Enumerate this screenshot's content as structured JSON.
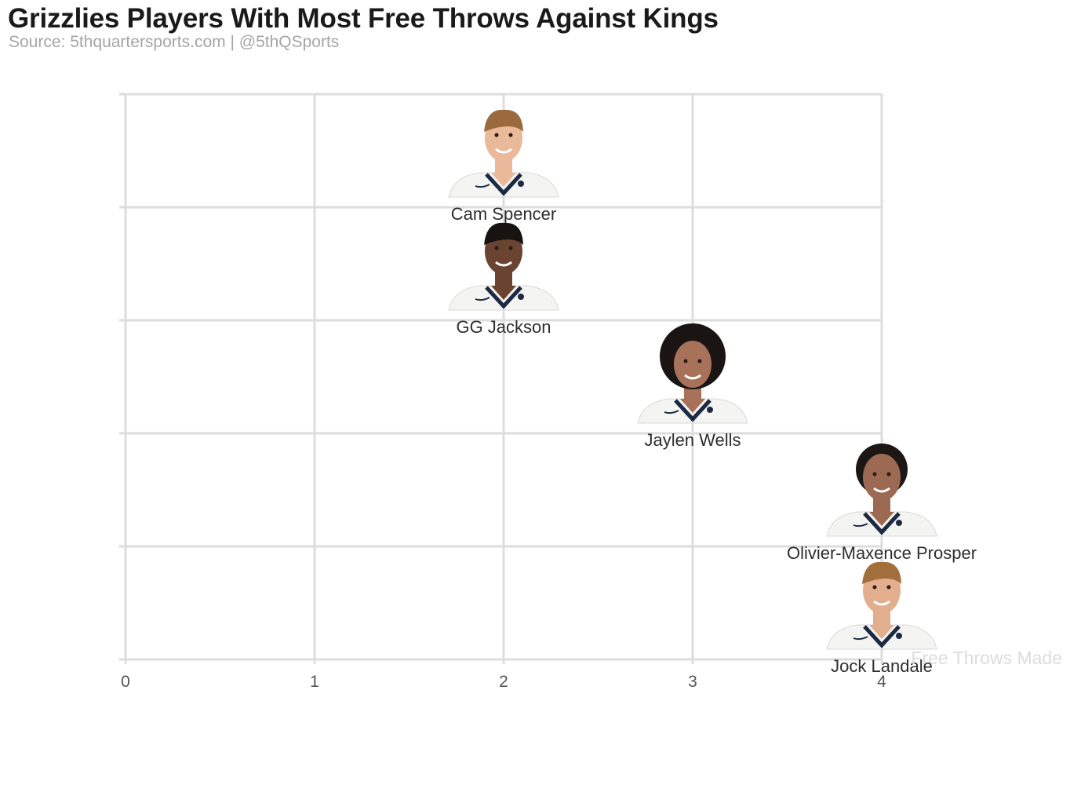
{
  "header": {
    "title": "Grizzlies Players With Most Free Throws Against Kings",
    "subtitle": "Source: 5thquartersports.com | @5thQSports"
  },
  "chart_data": {
    "type": "scatter",
    "title": "Grizzlies Players With Most Free Throws Against Kings",
    "subtitle": "Source: 5thquartersports.com | @5thQSports",
    "xlabel": "Free Throws Made",
    "ylabel": "",
    "xlim": [
      0,
      4
    ],
    "x_ticks": [
      0,
      1,
      2,
      3,
      4
    ],
    "y_categories": 5,
    "grid": true,
    "marker": "player-headshot",
    "points": [
      {
        "name": "Cam Spencer",
        "x": 2,
        "rank": 1
      },
      {
        "name": "GG Jackson",
        "x": 2,
        "rank": 2
      },
      {
        "name": "Jaylen Wells",
        "x": 3,
        "rank": 3
      },
      {
        "name": "Olivier-Maxence Prosper",
        "x": 4,
        "rank": 4
      },
      {
        "name": "Jock Landale",
        "x": 4,
        "rank": 5
      }
    ],
    "colors": {
      "jersey": "#f4f4f2",
      "jersey_trim": "#1d2a44",
      "grid": "#dddddd"
    }
  }
}
